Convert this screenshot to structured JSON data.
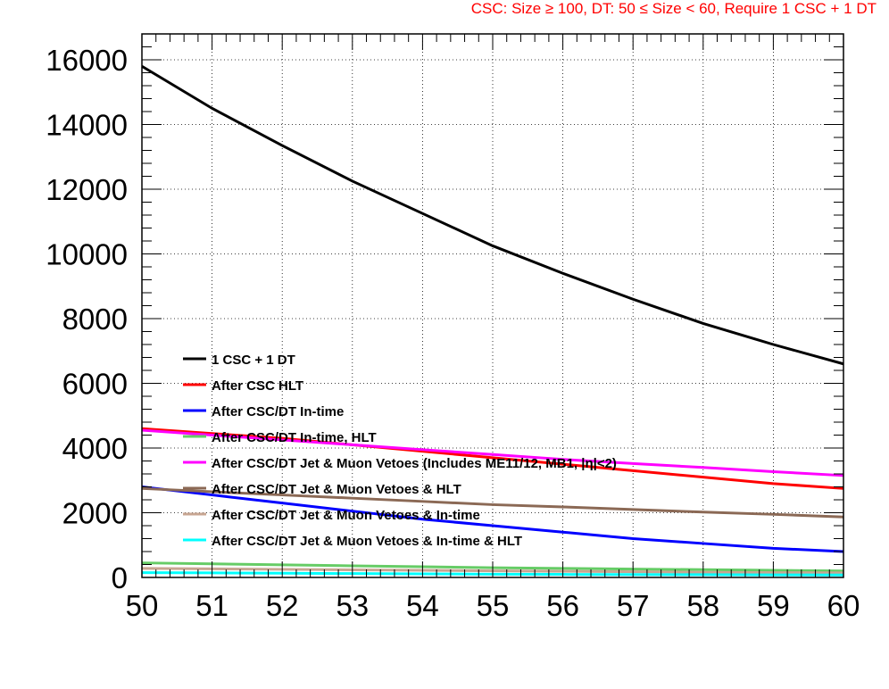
{
  "header": {
    "note": "CSC: Size  ≥ 100, DT: 50  ≤ Size < 60, Require 1 CSC + 1 DT",
    "note_color": "#ff0000"
  },
  "chart_data": {
    "type": "line",
    "title": "",
    "xlabel": "",
    "ylabel": "",
    "xlim": [
      50,
      60
    ],
    "ylim": [
      0,
      16800
    ],
    "x_ticks": [
      "50",
      "51",
      "52",
      "53",
      "54",
      "55",
      "56",
      "57",
      "58",
      "59",
      "60"
    ],
    "y_ticks": [
      "0",
      "2000",
      "4000",
      "6000",
      "8000",
      "10000",
      "12000",
      "14000",
      "16000"
    ],
    "grid": true,
    "legend_position": "left-middle",
    "x": [
      50,
      51,
      52,
      53,
      54,
      55,
      56,
      57,
      58,
      59,
      60
    ],
    "series": [
      {
        "name": "1 CSC + 1 DT",
        "color": "#000000",
        "values": [
          15800,
          14500,
          13350,
          12250,
          11250,
          10250,
          9400,
          8600,
          7850,
          7200,
          6600
        ]
      },
      {
        "name": "After CSC HLT",
        "color": "#ff0000",
        "values": [
          4600,
          4450,
          4300,
          4100,
          3900,
          3700,
          3500,
          3300,
          3100,
          2900,
          2750
        ]
      },
      {
        "name": "After CSC/DT In-time",
        "color": "#0000ff",
        "values": [
          2800,
          2550,
          2300,
          2050,
          1800,
          1600,
          1400,
          1200,
          1050,
          900,
          800
        ]
      },
      {
        "name": "After CSC/DT In-time, HLT",
        "color": "#66cc66",
        "values": [
          450,
          420,
          390,
          360,
          330,
          300,
          280,
          260,
          240,
          220,
          200
        ]
      },
      {
        "name": "After CSC/DT Jet & Muon Vetoes (Includes ME11/12, MB1, |η|<2)",
        "color": "#ff00ff",
        "values": [
          4550,
          4400,
          4250,
          4100,
          3950,
          3800,
          3650,
          3520,
          3400,
          3270,
          3150
        ]
      },
      {
        "name": "After CSC/DT Jet & Muon Vetoes & HLT",
        "color": "#8b6955",
        "values": [
          2750,
          2650,
          2550,
          2450,
          2350,
          2250,
          2180,
          2100,
          2020,
          1950,
          1870
        ]
      },
      {
        "name": "After CSC/DT Jet & Muon Vetoes & In-time",
        "color": "#c8a692",
        "values": [
          280,
          265,
          250,
          235,
          220,
          205,
          190,
          175,
          160,
          150,
          140
        ]
      },
      {
        "name": "After CSC/DT Jet & Muon Vetoes & In-time & HLT",
        "color": "#00ffff",
        "values": [
          150,
          140,
          130,
          120,
          110,
          100,
          95,
          90,
          85,
          80,
          75
        ]
      }
    ]
  }
}
